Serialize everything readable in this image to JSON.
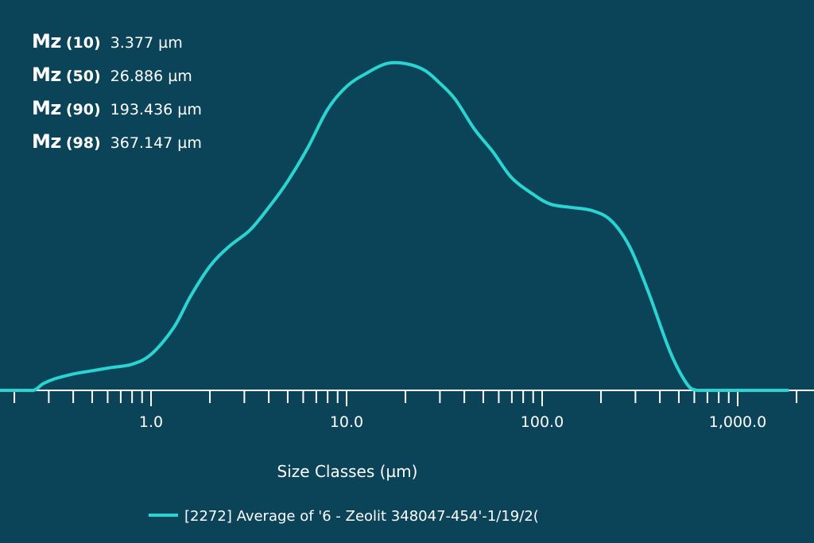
{
  "stats": [
    {
      "label": "Mz",
      "pct": "(10)",
      "value": "3.377 µm"
    },
    {
      "label": "Mz",
      "pct": "(50)",
      "value": "26.886 µm"
    },
    {
      "label": "Mz",
      "pct": "(90)",
      "value": "193.436 µm"
    },
    {
      "label": "Mz",
      "pct": "(98)",
      "value": "367.147 µm"
    }
  ],
  "colors": {
    "background": "#0b4459",
    "series": "#2ad4d0",
    "axis": "#ffffff"
  },
  "chart_data": {
    "type": "line",
    "title": "",
    "xlabel": "Size Classes (µm)",
    "ylabel": "",
    "x_scale": "log",
    "xlim": [
      0.12,
      2500
    ],
    "ylim": [
      0,
      1.05
    ],
    "grid": false,
    "legend_placement": "bottom",
    "x_ticks": [
      1.0,
      10.0,
      100.0,
      1000.0
    ],
    "x_tick_labels": [
      "1.0",
      "10.0",
      "100.0",
      "1,000.0"
    ],
    "series": [
      {
        "name": "[2272] Average of '6 - Zeolit   348047-454'-1/19/2(",
        "x": [
          0.2,
          0.25,
          0.28,
          0.32,
          0.4,
          0.5,
          0.63,
          0.8,
          1.0,
          1.3,
          1.6,
          2.0,
          2.5,
          3.2,
          4.0,
          5.0,
          6.3,
          8.0,
          10.0,
          12.6,
          16.0,
          20.0,
          25.0,
          30.0,
          36.0,
          45.0,
          56.0,
          70.0,
          90.0,
          110.0,
          140.0,
          180.0,
          225.0,
          280.0,
          350.0,
          450.0,
          550.0,
          620.0,
          700.0,
          900.0,
          1200.0,
          1800.0
        ],
        "values": [
          0,
          0,
          0.02,
          0.035,
          0.05,
          0.06,
          0.07,
          0.08,
          0.11,
          0.19,
          0.29,
          0.38,
          0.44,
          0.49,
          0.56,
          0.64,
          0.74,
          0.86,
          0.93,
          0.97,
          1.0,
          1.0,
          0.98,
          0.94,
          0.89,
          0.8,
          0.73,
          0.65,
          0.6,
          0.57,
          0.56,
          0.55,
          0.52,
          0.44,
          0.3,
          0.12,
          0.02,
          0,
          0,
          0,
          0,
          0
        ]
      }
    ]
  }
}
